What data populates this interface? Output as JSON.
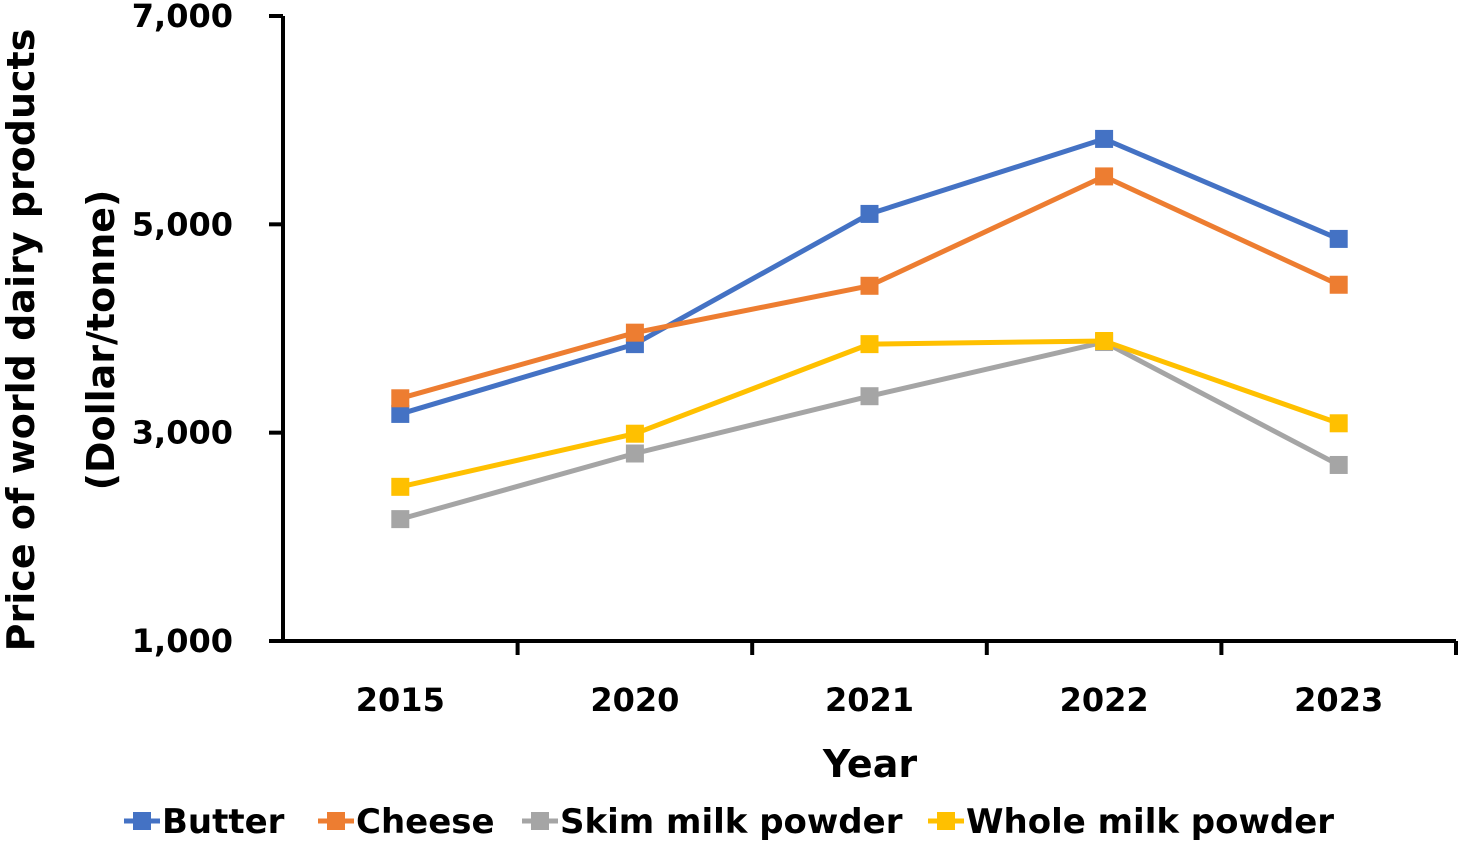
{
  "chart_data": {
    "type": "line",
    "title": "",
    "xlabel": "Year",
    "ylabel_lines": [
      "Price of world dairy products",
      "(Dollar/tonne)"
    ],
    "categories": [
      "2015",
      "2020",
      "2021",
      "2022",
      "2023"
    ],
    "ylim": [
      1000,
      7000
    ],
    "yticks": [
      1000,
      3000,
      5000,
      7000
    ],
    "ytick_labels": [
      "1,000",
      "3,000",
      "5,000",
      "7,000"
    ],
    "grid": false,
    "legend_position": "bottom",
    "series": [
      {
        "name": "Butter",
        "color": "#4472C4",
        "values": [
          3180,
          3850,
          5100,
          5820,
          4860
        ]
      },
      {
        "name": "Cheese",
        "color": "#ED7D31",
        "values": [
          3330,
          3960,
          4410,
          5460,
          4420
        ]
      },
      {
        "name": "Skim milk powder",
        "color": "#A5A5A5",
        "values": [
          2170,
          2800,
          3350,
          3870,
          2690
        ]
      },
      {
        "name": "Whole milk powder",
        "color": "#FFC000",
        "values": [
          2480,
          2990,
          3850,
          3880,
          3090
        ]
      }
    ]
  }
}
